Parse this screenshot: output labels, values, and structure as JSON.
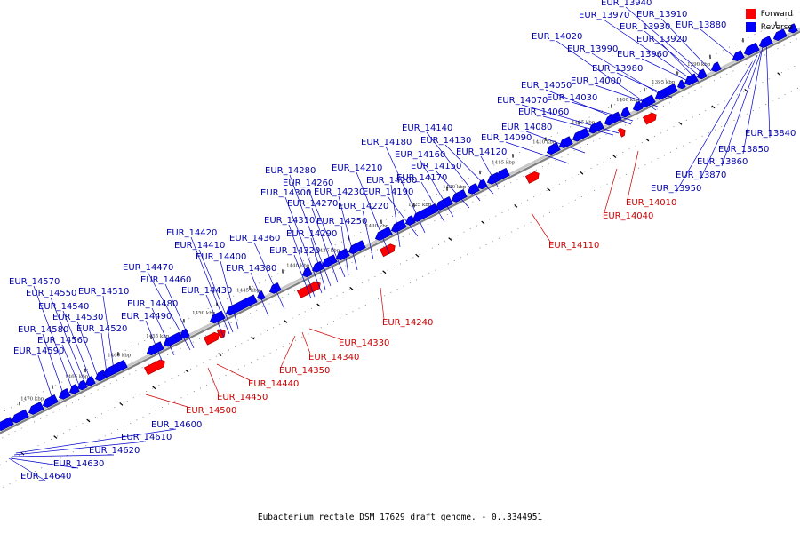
{
  "caption": "Eubacterium rectale DSM 17629 draft genome. - 0..3344951",
  "legend": {
    "forward_label": "Forward",
    "reverse_label": "Reverse",
    "forward_color": "#ff0000",
    "reverse_color": "#0000ff"
  },
  "colors": {
    "backbone": "#808080",
    "forward_line": "#cc0000",
    "reverse_line": "#0000cc",
    "forward_label": "#cc0000",
    "reverse_label": "#0000aa"
  },
  "chart_data": {
    "type": "genome-map",
    "tick_labels": [
      "1390 kbp",
      "1395 kbp",
      "1400 kbp",
      "1405 kbp",
      "1410 kbp",
      "1415 kbp",
      "1420 kbp",
      "1425 kbp",
      "1430 kbp",
      "1435 kbp",
      "1440 kbp",
      "1445 kbp",
      "1450 kbp",
      "1455 kbp",
      "1460 kbp",
      "1465 kbp",
      "1470 kbp"
    ],
    "reverse_genes": [
      "EUR_13840",
      "EUR_13850",
      "EUR_13860",
      "EUR_13870",
      "EUR_13880",
      "EUR_13910",
      "EUR_13920",
      "EUR_13930",
      "EUR_13940",
      "EUR_13950",
      "EUR_13960",
      "EUR_13970",
      "EUR_13980",
      "EUR_13990",
      "EUR_14000",
      "EUR_14020",
      "EUR_14030",
      "EUR_14050",
      "EUR_14060",
      "EUR_14070",
      "EUR_14080",
      "EUR_14090",
      "EUR_14120",
      "EUR_14130",
      "EUR_14140",
      "EUR_14150",
      "EUR_14160",
      "EUR_14170",
      "EUR_14180",
      "EUR_14190",
      "EUR_14200",
      "EUR_14210",
      "EUR_14220",
      "EUR_14230",
      "EUR_14250",
      "EUR_14260",
      "EUR_14270",
      "EUR_14280",
      "EUR_14290",
      "EUR_14300",
      "EUR_14310",
      "EUR_14320",
      "EUR_14360",
      "EUR_14380",
      "EUR_14400",
      "EUR_14410",
      "EUR_14420",
      "EUR_14430",
      "EUR_14460",
      "EUR_14470",
      "EUR_14480",
      "EUR_14490",
      "EUR_14510",
      "EUR_14520",
      "EUR_14530",
      "EUR_14540",
      "EUR_14550",
      "EUR_14560",
      "EUR_14570",
      "EUR_14580",
      "EUR_14590",
      "EUR_14600",
      "EUR_14610",
      "EUR_14620",
      "EUR_14630",
      "EUR_14640"
    ],
    "forward_genes": [
      "EUR_14010",
      "EUR_14040",
      "EUR_14110",
      "EUR_14240",
      "EUR_14330",
      "EUR_14340",
      "EUR_14350",
      "EUR_14440",
      "EUR_14450",
      "EUR_14500"
    ]
  }
}
